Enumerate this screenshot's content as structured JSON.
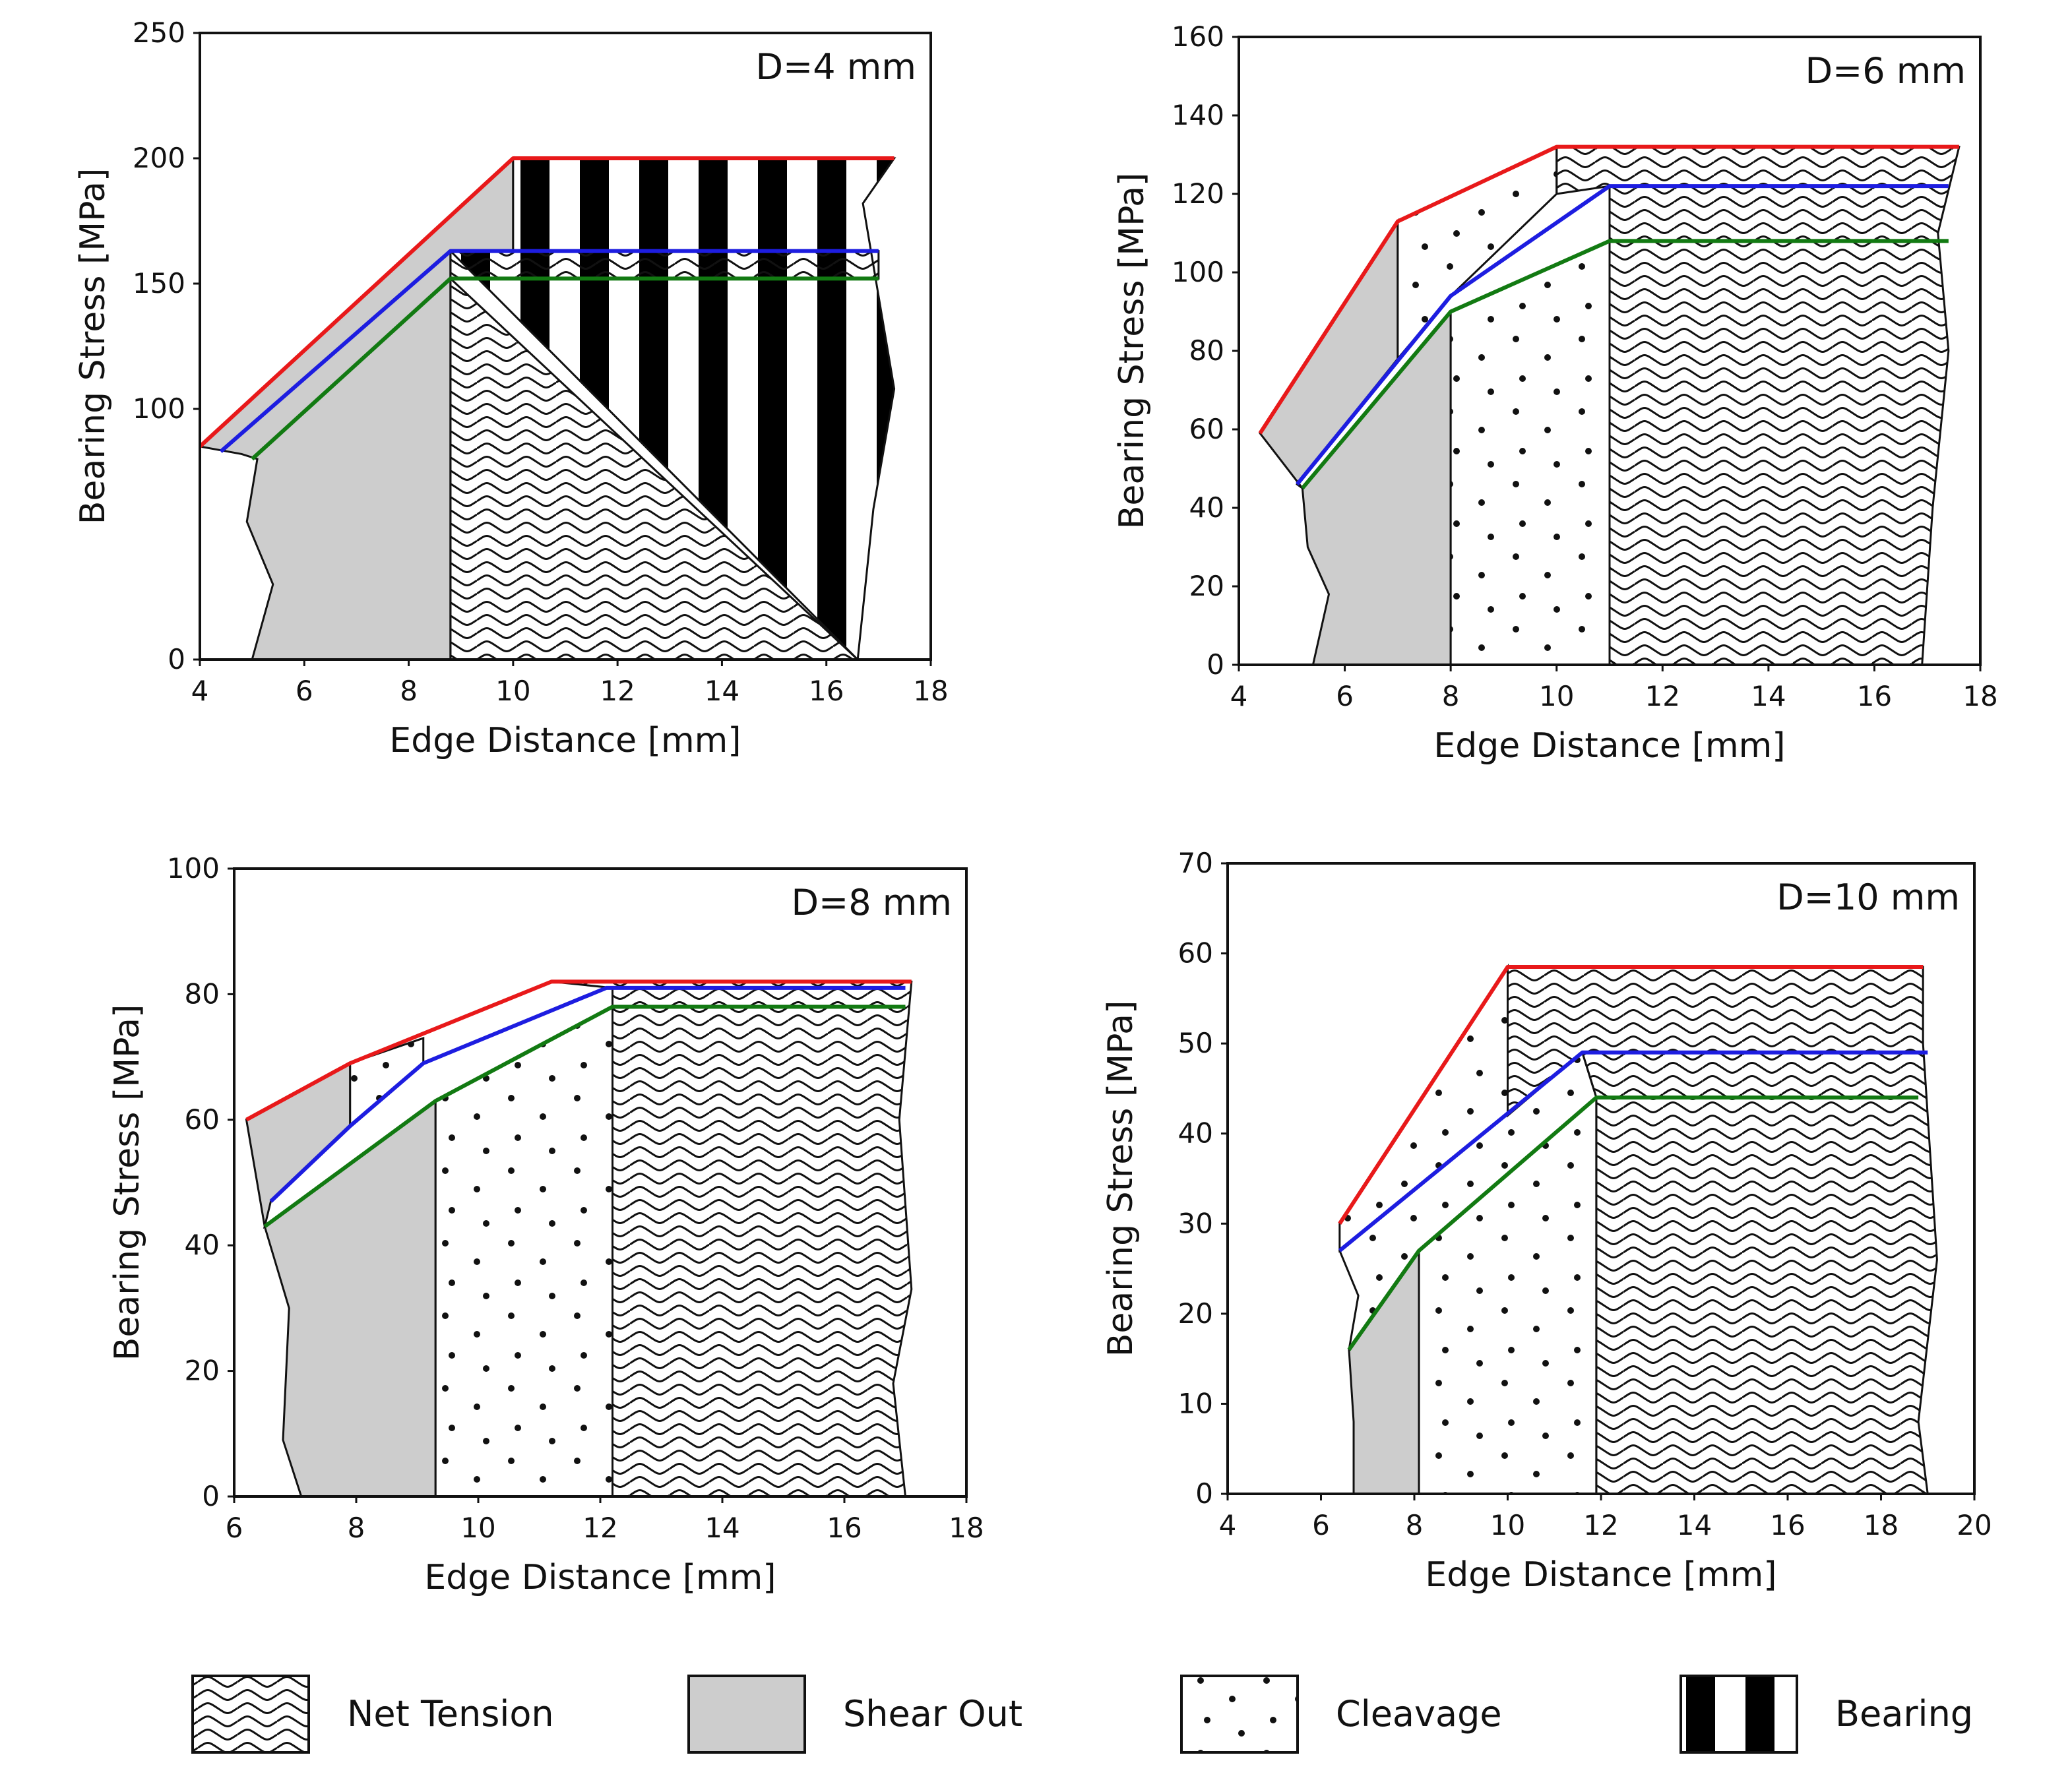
{
  "chart_data": [
    {
      "type": "area",
      "title": "D=4 mm",
      "xlabel": "Edge Distance [mm]",
      "ylabel": "Bearing Stress [MPa]",
      "xlim": [
        4,
        18
      ],
      "ylim": [
        0,
        250
      ],
      "xticks": [
        "4",
        "6",
        "8",
        "10",
        "12",
        "14",
        "16",
        "18"
      ],
      "yticks": [
        "0",
        "100",
        "150",
        "200",
        "250"
      ],
      "series": [
        {
          "name": "red",
          "color": "#e8191a",
          "points": [
            [
              4,
              85
            ],
            [
              10,
              200
            ],
            [
              17.3,
              200
            ]
          ]
        },
        {
          "name": "blue",
          "color": "#1d1de0",
          "points": [
            [
              4.4,
              83
            ],
            [
              8.8,
              163
            ],
            [
              17,
              163
            ]
          ]
        },
        {
          "name": "green",
          "color": "#127a12",
          "points": [
            [
              5,
              80
            ],
            [
              8.8,
              152
            ],
            [
              17,
              152
            ]
          ]
        }
      ],
      "regions": [
        {
          "pattern": "shear",
          "polygon": [
            [
              4,
              85
            ],
            [
              10,
              200
            ],
            [
              10,
              163
            ],
            [
              8.8,
              163
            ],
            [
              8.8,
              0
            ],
            [
              5,
              0
            ],
            [
              5.4,
              30
            ],
            [
              4.9,
              55
            ],
            [
              5.1,
              80
            ],
            [
              4.8,
              82
            ]
          ]
        },
        {
          "pattern": "bearing",
          "polygon": [
            [
              10,
              200
            ],
            [
              17.3,
              200
            ],
            [
              16.7,
              182
            ],
            [
              17.3,
              108
            ],
            [
              16.9,
              60
            ],
            [
              16.6,
              0
            ],
            [
              8.8,
              163
            ],
            [
              10,
              163
            ]
          ]
        },
        {
          "pattern": "tension",
          "polygon": [
            [
              8.8,
              163
            ],
            [
              17,
              163
            ],
            [
              17,
              152
            ],
            [
              8.8,
              152
            ]
          ]
        },
        {
          "pattern": "tension",
          "polygon": [
            [
              8.8,
              152
            ],
            [
              16.6,
              0
            ],
            [
              8.8,
              0
            ]
          ]
        }
      ]
    },
    {
      "type": "area",
      "title": "D=6 mm",
      "xlabel": "Edge Distance [mm]",
      "ylabel": "Bearing Stress [MPa]",
      "xlim": [
        4,
        18
      ],
      "ylim": [
        0,
        160
      ],
      "xticks": [
        "4",
        "6",
        "8",
        "10",
        "12",
        "14",
        "16",
        "18"
      ],
      "yticks": [
        "0",
        "20",
        "40",
        "60",
        "80",
        "100",
        "120",
        "140",
        "160"
      ],
      "series": [
        {
          "name": "red",
          "color": "#e8191a",
          "points": [
            [
              4.4,
              59
            ],
            [
              7,
              113
            ],
            [
              10,
              132
            ],
            [
              17.6,
              132
            ]
          ]
        },
        {
          "name": "blue",
          "color": "#1d1de0",
          "points": [
            [
              5.1,
              46
            ],
            [
              8,
              94
            ],
            [
              11,
              122
            ],
            [
              17.4,
              122
            ]
          ]
        },
        {
          "name": "green",
          "color": "#127a12",
          "points": [
            [
              5.2,
              45
            ],
            [
              8,
              90
            ],
            [
              11,
              108
            ],
            [
              17.4,
              108
            ]
          ]
        }
      ],
      "regions": [
        {
          "pattern": "shear",
          "polygon": [
            [
              4.4,
              59
            ],
            [
              7,
              113
            ],
            [
              7,
              78
            ],
            [
              5.1,
              46
            ],
            [
              5.2,
              45
            ],
            [
              8,
              90
            ],
            [
              8,
              0
            ],
            [
              5.4,
              0
            ],
            [
              5.7,
              18
            ],
            [
              5.3,
              30
            ],
            [
              5.2,
              45
            ]
          ]
        },
        {
          "pattern": "cleavage",
          "polygon": [
            [
              7,
              113
            ],
            [
              10,
              132
            ],
            [
              10,
              120
            ],
            [
              8,
              94
            ],
            [
              7,
              78
            ]
          ]
        },
        {
          "pattern": "cleavage",
          "polygon": [
            [
              8,
              90
            ],
            [
              11,
              108
            ],
            [
              11,
              0
            ],
            [
              8,
              0
            ]
          ]
        },
        {
          "pattern": "tension",
          "polygon": [
            [
              10,
              132
            ],
            [
              17.6,
              132
            ],
            [
              17.2,
              110
            ],
            [
              17.4,
              80
            ],
            [
              17.1,
              40
            ],
            [
              16.9,
              0
            ],
            [
              11,
              0
            ],
            [
              11,
              122
            ],
            [
              10,
              120
            ]
          ]
        }
      ]
    },
    {
      "type": "area",
      "title": "D=8 mm",
      "xlabel": "Edge Distance [mm]",
      "ylabel": "Bearing Stress [MPa]",
      "xlim": [
        6,
        18
      ],
      "ylim": [
        0,
        100
      ],
      "xticks": [
        "6",
        "8",
        "10",
        "12",
        "14",
        "16",
        "18"
      ],
      "yticks": [
        "0",
        "20",
        "40",
        "60",
        "80",
        "100"
      ],
      "series": [
        {
          "name": "red",
          "color": "#e8191a",
          "points": [
            [
              6.2,
              60
            ],
            [
              7.9,
              69
            ],
            [
              11.2,
              82
            ],
            [
              17.1,
              82
            ]
          ]
        },
        {
          "name": "blue",
          "color": "#1d1de0",
          "points": [
            [
              6.6,
              47
            ],
            [
              7.9,
              59
            ],
            [
              9.1,
              69
            ],
            [
              12.1,
              81
            ],
            [
              17,
              81
            ]
          ]
        },
        {
          "name": "green",
          "color": "#127a12",
          "points": [
            [
              6.5,
              43
            ],
            [
              9.3,
              63
            ],
            [
              12.2,
              78
            ],
            [
              17,
              78
            ]
          ]
        }
      ],
      "regions": [
        {
          "pattern": "shear",
          "polygon": [
            [
              6.2,
              60
            ],
            [
              7.9,
              69
            ],
            [
              7.9,
              59
            ],
            [
              6.6,
              47
            ],
            [
              6.5,
              43
            ],
            [
              9.3,
              63
            ],
            [
              9.3,
              0
            ],
            [
              7.1,
              0
            ],
            [
              6.8,
              9
            ],
            [
              6.9,
              30
            ],
            [
              6.5,
              43
            ]
          ]
        },
        {
          "pattern": "cleavage",
          "polygon": [
            [
              7.9,
              69
            ],
            [
              9.1,
              73
            ],
            [
              9.1,
              69
            ],
            [
              7.9,
              59
            ]
          ]
        },
        {
          "pattern": "cleavage",
          "polygon": [
            [
              9.3,
              63
            ],
            [
              12.2,
              78
            ],
            [
              12.2,
              0
            ],
            [
              9.3,
              0
            ]
          ]
        },
        {
          "pattern": "tension",
          "polygon": [
            [
              11.2,
              82
            ],
            [
              17.1,
              82
            ],
            [
              16.9,
              60
            ],
            [
              17.1,
              33
            ],
            [
              16.8,
              18
            ],
            [
              17,
              0
            ],
            [
              12.2,
              0
            ],
            [
              12.2,
              81
            ]
          ]
        }
      ]
    },
    {
      "type": "area",
      "title": "D=10 mm",
      "xlabel": "Edge Distance [mm]",
      "ylabel": "Bearing Stress [MPa]",
      "xlim": [
        4,
        20
      ],
      "ylim": [
        0,
        70
      ],
      "xticks": [
        "4",
        "6",
        "8",
        "10",
        "12",
        "14",
        "16",
        "18",
        "20"
      ],
      "yticks": [
        "0",
        "10",
        "20",
        "30",
        "40",
        "50",
        "60",
        "70"
      ],
      "series": [
        {
          "name": "red",
          "color": "#e8191a",
          "points": [
            [
              6.4,
              30
            ],
            [
              10,
              58.5
            ],
            [
              18.9,
              58.5
            ]
          ]
        },
        {
          "name": "blue",
          "color": "#1d1de0",
          "points": [
            [
              6.4,
              27
            ],
            [
              11.6,
              49
            ],
            [
              19,
              49
            ]
          ]
        },
        {
          "name": "green",
          "color": "#127a12",
          "points": [
            [
              6.6,
              16
            ],
            [
              8.1,
              27
            ],
            [
              11.9,
              44
            ],
            [
              18.8,
              44
            ]
          ]
        }
      ],
      "regions": [
        {
          "pattern": "shear",
          "polygon": [
            [
              6.6,
              16
            ],
            [
              8.1,
              27
            ],
            [
              8.1,
              0
            ],
            [
              6.7,
              0
            ],
            [
              6.7,
              8
            ]
          ]
        },
        {
          "pattern": "cleavage",
          "polygon": [
            [
              6.4,
              30
            ],
            [
              10,
              58.5
            ],
            [
              10,
              42
            ],
            [
              6.4,
              27
            ]
          ]
        },
        {
          "pattern": "cleavage",
          "polygon": [
            [
              6.4,
              27
            ],
            [
              11.6,
              49
            ],
            [
              11.9,
              44
            ],
            [
              11.9,
              0
            ],
            [
              8.1,
              0
            ],
            [
              8.1,
              27
            ],
            [
              6.6,
              16
            ],
            [
              6.8,
              22
            ]
          ]
        },
        {
          "pattern": "tension",
          "polygon": [
            [
              10,
              58.5
            ],
            [
              18.9,
              58.5
            ],
            [
              18.9,
              50
            ],
            [
              19.2,
              26
            ],
            [
              18.8,
              8
            ],
            [
              19,
              0
            ],
            [
              11.9,
              0
            ],
            [
              11.9,
              44
            ],
            [
              11.6,
              49
            ],
            [
              10,
              42
            ]
          ]
        }
      ]
    }
  ],
  "legend": [
    {
      "label": "Net Tension",
      "pattern": "tension"
    },
    {
      "label": "Shear Out",
      "pattern": "shear"
    },
    {
      "label": "Cleavage",
      "pattern": "cleavage"
    },
    {
      "label": "Bearing",
      "pattern": "bearing"
    }
  ]
}
